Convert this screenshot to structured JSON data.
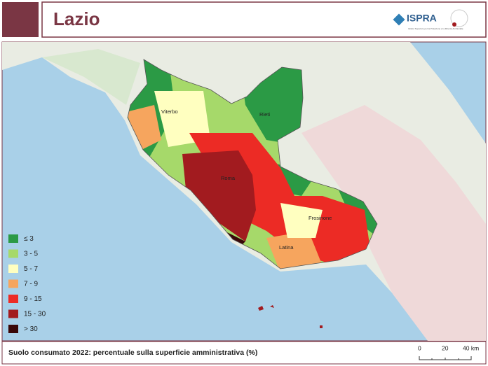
{
  "header": {
    "title": "Lazio",
    "logo": "ISPRA",
    "logo_subtitle": "Istituto Superiore per la Protezione e la Ricerca Ambientale"
  },
  "map": {
    "places": [
      "Viterbo",
      "Rieti",
      "Roma",
      "Frosinone",
      "Latina"
    ]
  },
  "legend": {
    "items": [
      {
        "label": "≤ 3",
        "color": "#2b9a45"
      },
      {
        "label": "3 - 5",
        "color": "#a6d96a"
      },
      {
        "label": "5 - 7",
        "color": "#ffffc0"
      },
      {
        "label": "7 - 9",
        "color": "#f6a55e"
      },
      {
        "label": "9 - 15",
        "color": "#ec2b25"
      },
      {
        "label": "15 - 30",
        "color": "#a21b1f"
      },
      {
        "label": "> 30",
        "color": "#3a0808"
      }
    ]
  },
  "footer": {
    "caption": "Suolo consumato 2022: percentuale sulla superficie amministrativa (%)",
    "scale_labels": [
      "0",
      "20",
      "40 km"
    ]
  }
}
